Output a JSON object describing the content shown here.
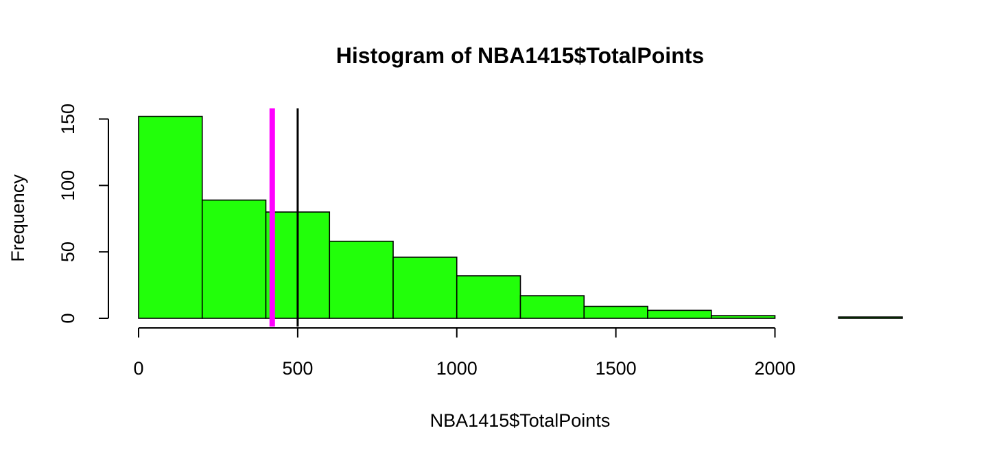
{
  "chart_data": {
    "type": "bar",
    "title": "Histogram of NBA1415$TotalPoints",
    "xlabel": "NBA1415$TotalPoints",
    "ylabel": "Frequency",
    "bin_edges": [
      0,
      200,
      400,
      600,
      800,
      1000,
      1200,
      1400,
      1600,
      1800,
      2000,
      2200,
      2400
    ],
    "values": [
      152,
      89,
      80,
      58,
      46,
      32,
      17,
      9,
      6,
      2,
      0,
      1
    ],
    "xlim": [
      0,
      2400
    ],
    "ylim": [
      0,
      158
    ],
    "x_ticks": [
      0,
      500,
      1000,
      1500,
      2000
    ],
    "x_tick_labels": [
      "0",
      "500",
      "1000",
      "1500",
      "2000"
    ],
    "y_ticks": [
      0,
      50,
      100,
      150
    ],
    "y_tick_labels": [
      "0",
      "50",
      "100",
      "150"
    ],
    "bar_color": "#22ff0a",
    "bar_border_color": "#000000",
    "grid": false,
    "legend": "none",
    "vertical_lines": [
      {
        "x": 420,
        "color": "#ff00ff",
        "style": "thick"
      },
      {
        "x": 500,
        "color": "#000000",
        "style": "normal"
      }
    ]
  }
}
